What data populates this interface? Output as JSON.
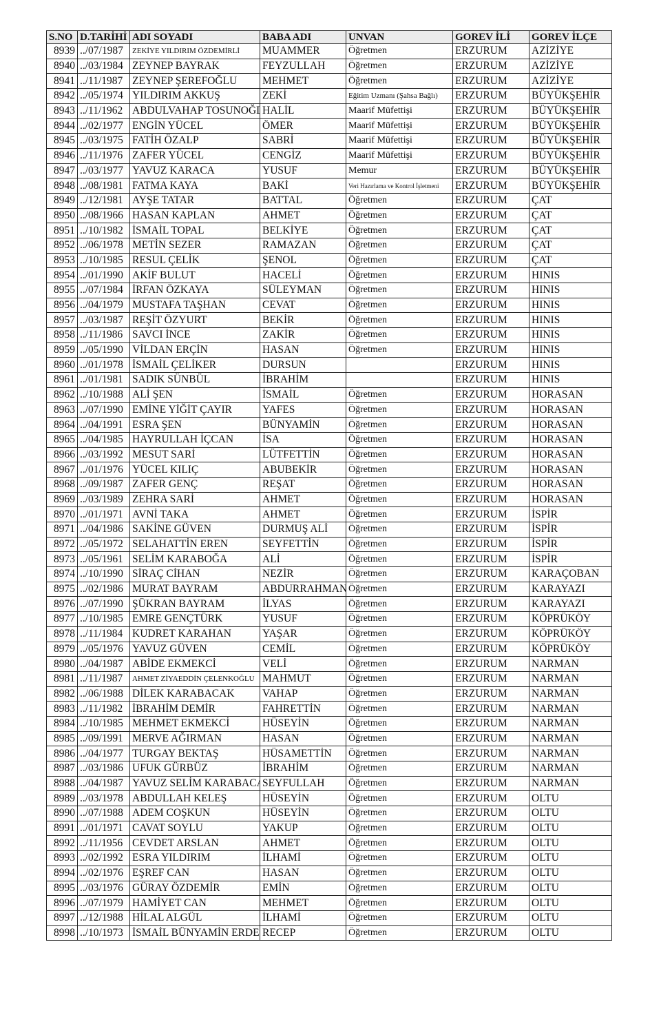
{
  "headers": [
    "S.NO",
    "D.TARİHİ",
    "ADI SOYADI",
    "BABA ADI",
    "UNVAN",
    "GOREV İLİ",
    "GOREV İLÇE"
  ],
  "rows": [
    [
      "8939",
      "../07/1987",
      "ZEKİYE YILDIRIM ÖZDEMİRLİ",
      "MUAMMER",
      "Öğretmen",
      "ERZURUM",
      "AZİZİYE"
    ],
    [
      "8940",
      "../03/1984",
      "ZEYNEP BAYRAK",
      "FEYZULLAH",
      "Öğretmen",
      "ERZURUM",
      "AZİZİYE"
    ],
    [
      "8941",
      "../11/1987",
      "ZEYNEP ŞEREFOĞLU",
      "MEHMET",
      "Öğretmen",
      "ERZURUM",
      "AZİZİYE"
    ],
    [
      "8942",
      "../05/1974",
      "YILDIRIM AKKUŞ",
      "ZEKİ",
      "Eğitim Uzmanı (Şahsa Bağlı)",
      "ERZURUM",
      "BÜYÜKŞEHİR"
    ],
    [
      "8943",
      "../11/1962",
      "ABDULVAHAP TOSUNOĞLU",
      "HALİL",
      "Maarif Müfettişi",
      "ERZURUM",
      "BÜYÜKŞEHİR"
    ],
    [
      "8944",
      "../02/1977",
      "ENGİN YÜCEL",
      "ÖMER",
      "Maarif Müfettişi",
      "ERZURUM",
      "BÜYÜKŞEHİR"
    ],
    [
      "8945",
      "../03/1975",
      "FATİH ÖZALP",
      "SABRİ",
      "Maarif Müfettişi",
      "ERZURUM",
      "BÜYÜKŞEHİR"
    ],
    [
      "8946",
      "../11/1976",
      "ZAFER YÜCEL",
      "CENGİZ",
      "Maarif Müfettişi",
      "ERZURUM",
      "BÜYÜKŞEHİR"
    ],
    [
      "8947",
      "../03/1977",
      "YAVUZ KARACA",
      "YUSUF",
      "Memur",
      "ERZURUM",
      "BÜYÜKŞEHİR"
    ],
    [
      "8948",
      "../08/1981",
      "FATMA KAYA",
      "BAKİ",
      "Veri Hazırlama ve Kontrol İşletmeni",
      "ERZURUM",
      "BÜYÜKŞEHİR"
    ],
    [
      "8949",
      "../12/1981",
      "AYŞE TATAR",
      "BATTAL",
      "Öğretmen",
      "ERZURUM",
      "ÇAT"
    ],
    [
      "8950",
      "../08/1966",
      "HASAN KAPLAN",
      "AHMET",
      "Öğretmen",
      "ERZURUM",
      "ÇAT"
    ],
    [
      "8951",
      "../10/1982",
      "İSMAİL TOPAL",
      "BELKİYE",
      "Öğretmen",
      "ERZURUM",
      "ÇAT"
    ],
    [
      "8952",
      "../06/1978",
      "METİN SEZER",
      "RAMAZAN",
      "Öğretmen",
      "ERZURUM",
      "ÇAT"
    ],
    [
      "8953",
      "../10/1985",
      "RESUL ÇELİK",
      "ŞENOL",
      "Öğretmen",
      "ERZURUM",
      "ÇAT"
    ],
    [
      "8954",
      "../01/1990",
      "AKİF BULUT",
      "HACELİ",
      "Öğretmen",
      "ERZURUM",
      "HINIS"
    ],
    [
      "8955",
      "../07/1984",
      "İRFAN ÖZKAYA",
      "SÜLEYMAN",
      "Öğretmen",
      "ERZURUM",
      "HINIS"
    ],
    [
      "8956",
      "../04/1979",
      "MUSTAFA TAŞHAN",
      "CEVAT",
      "Öğretmen",
      "ERZURUM",
      "HINIS"
    ],
    [
      "8957",
      "../03/1987",
      "REŞİT ÖZYURT",
      "BEKİR",
      "Öğretmen",
      "ERZURUM",
      "HINIS"
    ],
    [
      "8958",
      "../11/1986",
      "SAVCI İNCE",
      "ZAKİR",
      "Öğretmen",
      "ERZURUM",
      "HINIS"
    ],
    [
      "8959",
      "../05/1990",
      "VİLDAN ERÇİN",
      "HASAN",
      "Öğretmen",
      "ERZURUM",
      "HINIS"
    ],
    [
      "8960",
      "../01/1978",
      "İSMAİL ÇELİKER",
      "DURSUN",
      "",
      "ERZURUM",
      "HINIS"
    ],
    [
      "8961",
      "../01/1981",
      "SADIK SÜNBÜL",
      "İBRAHİM",
      "",
      "ERZURUM",
      "HINIS"
    ],
    [
      "8962",
      "../10/1988",
      "ALİ ŞEN",
      "İSMAİL",
      "Öğretmen",
      "ERZURUM",
      "HORASAN"
    ],
    [
      "8963",
      "../07/1990",
      "EMİNE YİĞİT ÇAYIR",
      "YAFES",
      "Öğretmen",
      "ERZURUM",
      "HORASAN"
    ],
    [
      "8964",
      "../04/1991",
      "ESRA ŞEN",
      "BÜNYAMİN",
      "Öğretmen",
      "ERZURUM",
      "HORASAN"
    ],
    [
      "8965",
      "../04/1985",
      "HAYRULLAH İÇCAN",
      "İSA",
      "Öğretmen",
      "ERZURUM",
      "HORASAN"
    ],
    [
      "8966",
      "../03/1992",
      "MESUT SARİ",
      "LÜTFETTİN",
      "Öğretmen",
      "ERZURUM",
      "HORASAN"
    ],
    [
      "8967",
      "../01/1976",
      "YÜCEL KILIÇ",
      "ABUBEKİR",
      "Öğretmen",
      "ERZURUM",
      "HORASAN"
    ],
    [
      "8968",
      "../09/1987",
      "ZAFER GENÇ",
      "REŞAT",
      "Öğretmen",
      "ERZURUM",
      "HORASAN"
    ],
    [
      "8969",
      "../03/1989",
      "ZEHRA SARİ",
      "AHMET",
      "Öğretmen",
      "ERZURUM",
      "HORASAN"
    ],
    [
      "8970",
      "../01/1971",
      "AVNİ TAKA",
      "AHMET",
      "Öğretmen",
      "ERZURUM",
      "İSPİR"
    ],
    [
      "8971",
      "../04/1986",
      "SAKİNE GÜVEN",
      "DURMUŞ ALİ",
      "Öğretmen",
      "ERZURUM",
      "İSPİR"
    ],
    [
      "8972",
      "../05/1972",
      "SELAHATTİN EREN",
      "SEYFETTİN",
      "Öğretmen",
      "ERZURUM",
      "İSPİR"
    ],
    [
      "8973",
      "../05/1961",
      "SELİM KARABOĞA",
      "ALİ",
      "Öğretmen",
      "ERZURUM",
      "İSPİR"
    ],
    [
      "8974",
      "../10/1990",
      "SİRAÇ CİHAN",
      "NEZİR",
      "Öğretmen",
      "ERZURUM",
      "KARAÇOBAN"
    ],
    [
      "8975",
      "../02/1986",
      "MURAT BAYRAM",
      "ABDURRAHMAN",
      "Öğretmen",
      "ERZURUM",
      "KARAYAZI"
    ],
    [
      "8976",
      "../07/1990",
      "ŞÜKRAN BAYRAM",
      "İLYAS",
      "Öğretmen",
      "ERZURUM",
      "KARAYAZI"
    ],
    [
      "8977",
      "../10/1985",
      "EMRE GENÇTÜRK",
      "YUSUF",
      "Öğretmen",
      "ERZURUM",
      "KÖPRÜKÖY"
    ],
    [
      "8978",
      "../11/1984",
      "KUDRET KARAHAN",
      "YAŞAR",
      "Öğretmen",
      "ERZURUM",
      "KÖPRÜKÖY"
    ],
    [
      "8979",
      "../05/1976",
      "YAVUZ GÜVEN",
      "CEMİL",
      "Öğretmen",
      "ERZURUM",
      "KÖPRÜKÖY"
    ],
    [
      "8980",
      "../04/1987",
      "ABİDE EKMEKCİ",
      "VELİ",
      "Öğretmen",
      "ERZURUM",
      "NARMAN"
    ],
    [
      "8981",
      "../11/1987",
      "AHMET ZİYAEDDİN ÇELENKOĞLU",
      "MAHMUT",
      "Öğretmen",
      "ERZURUM",
      "NARMAN"
    ],
    [
      "8982",
      "../06/1988",
      "DİLEK KARABACAK",
      "VAHAP",
      "Öğretmen",
      "ERZURUM",
      "NARMAN"
    ],
    [
      "8983",
      "../11/1982",
      "İBRAHİM DEMİR",
      "FAHRETTİN",
      "Öğretmen",
      "ERZURUM",
      "NARMAN"
    ],
    [
      "8984",
      "../10/1985",
      "MEHMET EKMEKCİ",
      "HÜSEYİN",
      "Öğretmen",
      "ERZURUM",
      "NARMAN"
    ],
    [
      "8985",
      "../09/1991",
      "MERVE AĞIRMAN",
      "HASAN",
      "Öğretmen",
      "ERZURUM",
      "NARMAN"
    ],
    [
      "8986",
      "../04/1977",
      "TURGAY BEKTAŞ",
      "HÜSAMETTİN",
      "Öğretmen",
      "ERZURUM",
      "NARMAN"
    ],
    [
      "8987",
      "../03/1986",
      "UFUK GÜRBÜZ",
      "İBRAHİM",
      "Öğretmen",
      "ERZURUM",
      "NARMAN"
    ],
    [
      "8988",
      "../04/1987",
      "YAVUZ SELİM KARABACAK",
      "SEYFULLAH",
      "Öğretmen",
      "ERZURUM",
      "NARMAN"
    ],
    [
      "8989",
      "../03/1978",
      "ABDULLAH KELEŞ",
      "HÜSEYİN",
      "Öğretmen",
      "ERZURUM",
      "OLTU"
    ],
    [
      "8990",
      "../07/1988",
      "ADEM COŞKUN",
      "HÜSEYİN",
      "Öğretmen",
      "ERZURUM",
      "OLTU"
    ],
    [
      "8991",
      "../01/1971",
      "CAVAT SOYLU",
      "YAKUP",
      "Öğretmen",
      "ERZURUM",
      "OLTU"
    ],
    [
      "8992",
      "../11/1956",
      "CEVDET ARSLAN",
      "AHMET",
      "Öğretmen",
      "ERZURUM",
      "OLTU"
    ],
    [
      "8993",
      "../02/1992",
      "ESRA YILDIRIM",
      "İLHAMİ",
      "Öğretmen",
      "ERZURUM",
      "OLTU"
    ],
    [
      "8994",
      "../02/1976",
      "EŞREF CAN",
      "HASAN",
      "Öğretmen",
      "ERZURUM",
      "OLTU"
    ],
    [
      "8995",
      "../03/1976",
      "GÜRAY ÖZDEMİR",
      "EMİN",
      "Öğretmen",
      "ERZURUM",
      "OLTU"
    ],
    [
      "8996",
      "../07/1979",
      "HAMİYET CAN",
      "MEHMET",
      "Öğretmen",
      "ERZURUM",
      "OLTU"
    ],
    [
      "8997",
      "../12/1988",
      "HİLAL ALGÜL",
      "İLHAMİ",
      "Öğretmen",
      "ERZURUM",
      "OLTU"
    ],
    [
      "8998",
      "../10/1973",
      "İSMAİL BÜNYAMİN ERDEM",
      "RECEP",
      "Öğretmen",
      "ERZURUM",
      "OLTU"
    ]
  ]
}
